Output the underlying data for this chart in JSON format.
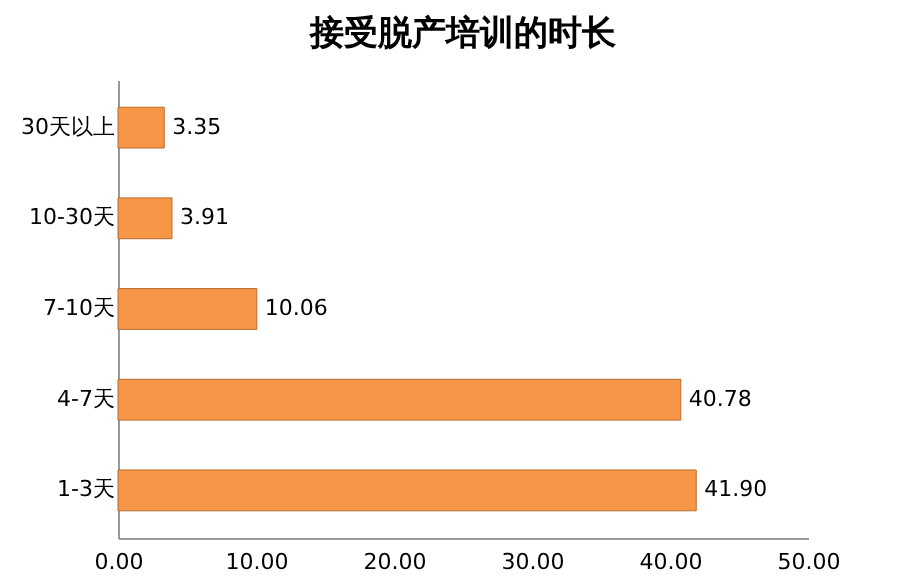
{
  "chart_data": {
    "type": "bar",
    "orientation": "horizontal",
    "title": "接受脱产培训的时长",
    "categories": [
      "30天以上",
      "10-30天",
      "7-10天",
      "4-7天",
      "1-3天"
    ],
    "values": [
      3.35,
      3.91,
      10.06,
      40.78,
      41.9
    ],
    "value_labels": [
      "3.35",
      "3.91",
      "10.06",
      "40.78",
      "41.90"
    ],
    "color": "#f79646",
    "xlim": [
      0,
      50
    ],
    "xticks": [
      {
        "value": 0,
        "label": "0.00"
      },
      {
        "value": 10,
        "label": "10.00"
      },
      {
        "value": 20,
        "label": "20.00"
      },
      {
        "value": 30,
        "label": "30.00"
      },
      {
        "value": 40,
        "label": "40.00"
      },
      {
        "value": 50,
        "label": "50.00"
      }
    ],
    "grid": false
  }
}
